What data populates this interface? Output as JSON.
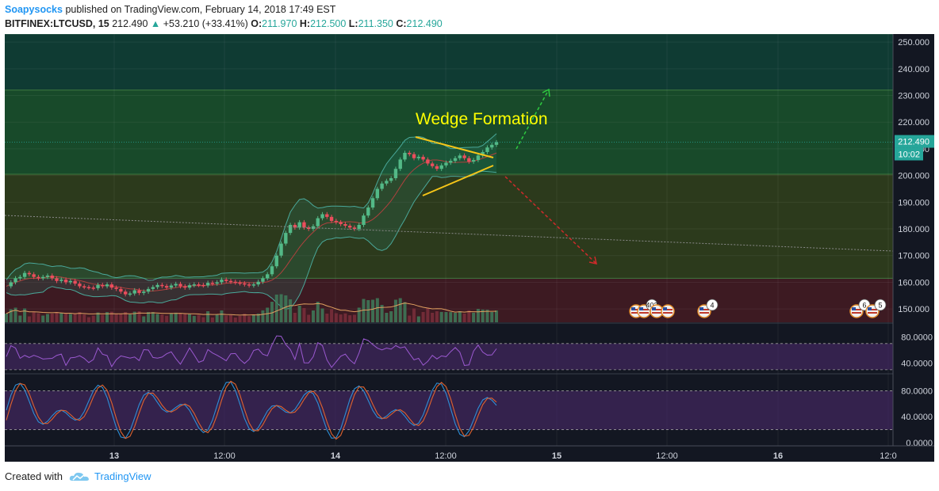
{
  "header": {
    "author": "Soapysocks",
    "published_text": "published on TradingView.com, February 14, 2018 17:49 EST"
  },
  "ticker": {
    "symbol": "BITFINEX:LTCUSD, 15",
    "last": "212.490",
    "change": "+53.210 (+33.41%)",
    "o_label": "O:",
    "o": "211.970",
    "h_label": "H:",
    "h": "212.500",
    "l_label": "L:",
    "l": "211.350",
    "c_label": "C:",
    "c": "212.490"
  },
  "footer": {
    "created_with": "Created with",
    "brand": "TradingView"
  },
  "chart_data": {
    "type": "candlestick",
    "annotations": [
      "Wedge Formation"
    ],
    "price_axis": {
      "ticks": [
        "250.000",
        "240.000",
        "230.000",
        "220.000",
        "210.000",
        "200.000",
        "190.000",
        "180.000",
        "170.000",
        "160.000",
        "150.000"
      ],
      "range": [
        145,
        253
      ],
      "last_price_label": "212.490",
      "countdown_label": "10:02"
    },
    "time_axis": {
      "labels": [
        "13",
        "12:00",
        "14",
        "12:00",
        "15",
        "12:00",
        "16",
        "12:0"
      ]
    },
    "rsi_pane": {
      "ticks": [
        "80.0000",
        "40.0000"
      ],
      "range": [
        25,
        100
      ],
      "upper_band": 70,
      "lower_band": 30
    },
    "stoch_pane": {
      "ticks": [
        "80.0000",
        "40.0000",
        "0.0000"
      ],
      "range": [
        -5,
        105
      ],
      "upper_band": 80,
      "lower_band": 20
    },
    "event_badges": [
      "403",
      "4",
      "6",
      "5"
    ],
    "zones": [
      {
        "from": 232,
        "to": 253,
        "color": "#0f3b33"
      },
      {
        "from": 200.5,
        "to": 232,
        "color": "#184a2a"
      },
      {
        "from": 161.5,
        "to": 200.5,
        "color": "#2c3a1c"
      },
      {
        "from": 145,
        "to": 161.5,
        "color": "#3d1a22"
      }
    ],
    "price_series": [
      158.5,
      160,
      161.5,
      162,
      163.5,
      163,
      162,
      161.5,
      162,
      162.5,
      161.5,
      160.5,
      161,
      160,
      160.5,
      159.5,
      158.5,
      158.2,
      158,
      157.8,
      159,
      158.5,
      159.2,
      158,
      157.5,
      156.5,
      155.5,
      155.8,
      157,
      156,
      156.5,
      157.5,
      158.2,
      159,
      158.6,
      158,
      158.8,
      159.4,
      158.5,
      158,
      158.9,
      159.2,
      159,
      158.8,
      159.8,
      159.5,
      160,
      161,
      160.5,
      160.2,
      159.9,
      159.6,
      159.2,
      158.8,
      159.2,
      160.2,
      161.5,
      163,
      166,
      170,
      174.5,
      178.5,
      181.5,
      180.5,
      182.5,
      180.5,
      180,
      181,
      184,
      185.5,
      184.5,
      183,
      182.5,
      181.8,
      181.2,
      180.5,
      180,
      181.5,
      185,
      188,
      191.5,
      195,
      197,
      198,
      199,
      202.5,
      206,
      208.5,
      208,
      206.5,
      207,
      206,
      204.5,
      203.5,
      202.5,
      203.8,
      204.8,
      205.5,
      206.5,
      207.5,
      206.5,
      205.2,
      205.8,
      207.5,
      208.8,
      210.5,
      211.5,
      212.49
    ]
  }
}
